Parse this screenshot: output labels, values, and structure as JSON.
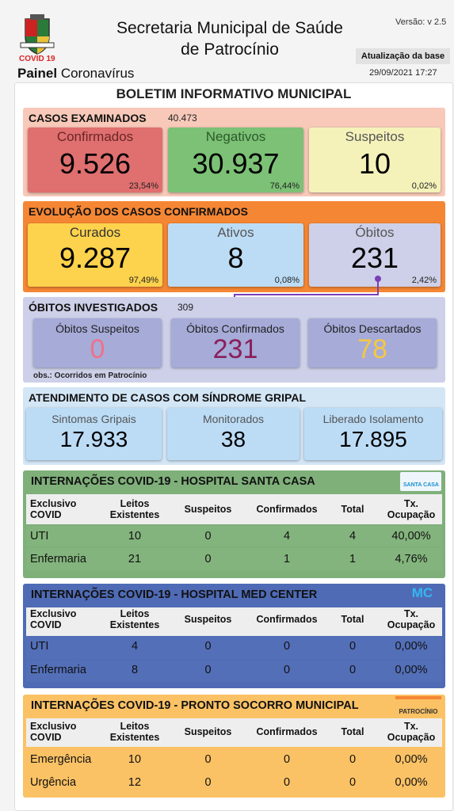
{
  "header": {
    "title_line1": "Secretaria Municipal de Saúde",
    "title_line2": "de Patrocínio",
    "version": "Versão: v 2.5",
    "update_label": "Atualização da base",
    "update_date": "29/09/2021 17:27",
    "covid_label": "COVID 19",
    "panel_bold": "Painel",
    "panel_rest": " Coronavírus"
  },
  "bulletin": {
    "title": "BOLETIM INFORMATIVO MUNICIPAL"
  },
  "examined": {
    "title": "CASOS EXAMINADOS",
    "total": "40.473",
    "cards": [
      {
        "label": "Confirmados",
        "value": "9.526",
        "pct": "23,54%"
      },
      {
        "label": "Negativos",
        "value": "30.937",
        "pct": "76,44%"
      },
      {
        "label": "Suspeitos",
        "value": "10",
        "pct": "0,02%"
      }
    ]
  },
  "evolution": {
    "title": "EVOLUÇÃO DOS CASOS CONFIRMADOS",
    "cards": [
      {
        "label": "Curados",
        "value": "9.287",
        "pct": "97,49%"
      },
      {
        "label": "Ativos",
        "value": "8",
        "pct": "0,08%"
      },
      {
        "label": "Óbitos",
        "value": "231",
        "pct": "2,42%"
      }
    ]
  },
  "deaths": {
    "title": "ÓBITOS INVESTIGADOS",
    "total": "309",
    "note": "obs.: Ocorridos em Patrocínio",
    "cards": [
      {
        "label": "Óbitos Suspeitos",
        "value": "0"
      },
      {
        "label": "Óbitos Confirmados",
        "value": "231"
      },
      {
        "label": "Óbitos Descartados",
        "value": "78"
      }
    ]
  },
  "flu": {
    "title": "ATENDIMENTO DE CASOS COM SÍNDROME GRIPAL",
    "cards": [
      {
        "label": "Sintomas Gripais",
        "value": "17.933"
      },
      {
        "label": "Monitorados",
        "value": "38"
      },
      {
        "label": "Liberado Isolamento",
        "value": "17.895"
      }
    ]
  },
  "columns": {
    "c1a": "Exclusivo",
    "c1b": "COVID",
    "c2a": "Leitos",
    "c2b": "Existentes",
    "c3": "Suspeitos",
    "c4": "Confirmados",
    "c5": "Total",
    "c6a": "Tx.",
    "c6b": "Ocupação"
  },
  "santa_casa": {
    "title": "INTERNAÇÕES COVID-19 - HOSPITAL SANTA CASA",
    "logo_text": "SANTA CASA",
    "rows": [
      [
        "UTI",
        "10",
        "0",
        "4",
        "4",
        "40,00%"
      ],
      [
        "Enfermaria",
        "21",
        "0",
        "1",
        "1",
        "4,76%"
      ]
    ]
  },
  "med_center": {
    "title": "INTERNAÇÕES COVID-19 - HOSPITAL MED CENTER",
    "logo_text": "MC",
    "rows": [
      [
        "UTI",
        "4",
        "0",
        "0",
        "0",
        "0,00%"
      ],
      [
        "Enfermaria",
        "8",
        "0",
        "0",
        "0",
        "0,00%"
      ]
    ]
  },
  "pronto_socorro": {
    "title": "INTERNAÇÕES COVID-19 - PRONTO SOCORRO MUNICIPAL",
    "logo_text": "PATROCÍNIO",
    "rows": [
      [
        "Emergência",
        "10",
        "0",
        "0",
        "0",
        "0,00%"
      ],
      [
        "Urgência",
        "12",
        "0",
        "0",
        "0",
        "0,00%"
      ]
    ]
  },
  "colors": {
    "examined_bg": "#f8c9b9",
    "evolution_bg": "#f58634",
    "deaths_bg": "#cdd0e8",
    "flu_bg": "#d3e6f6",
    "santa_bg": "#7fb07a",
    "med_bg": "#4f6bb5",
    "ps_bg": "#fbc265"
  }
}
